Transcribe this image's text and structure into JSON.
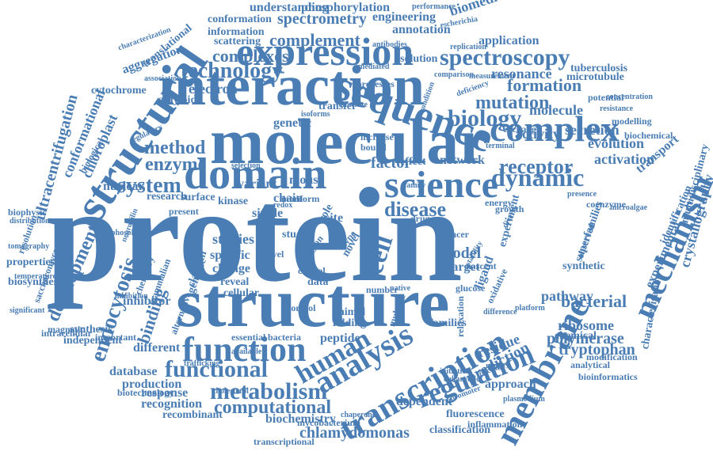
{
  "cloud": {
    "color": "#4a7db4",
    "words": [
      "protein",
      "structure",
      "molecular",
      "interaction",
      "structural",
      "domain",
      "sequence",
      "expression",
      "science",
      "function",
      "membrane",
      "complex",
      "mechanism",
      "analysis",
      "transcription",
      "metabolism",
      "human",
      "functional",
      "spectroscopy",
      "regulation",
      "technology",
      "dynamic",
      "endocytosis",
      "biology",
      "cell",
      "receptor",
      "system",
      "method",
      "disease",
      "enzyme",
      "mutation",
      "computational",
      "binding",
      "complexes",
      "complement",
      "development",
      "spectrometry",
      "formation",
      "chlamydomonas",
      "ultracentrifugation",
      "crystallography",
      "conformational",
      "chloroplast",
      "electron",
      "pathway",
      "bacterial",
      "model",
      "factor",
      "biochemistry",
      "prediction",
      "polymerase",
      "tryptophan",
      "ribosome",
      "activity",
      "molecule",
      "secretion",
      "evolution",
      "activation",
      "resonance",
      "engineering",
      "phosphorylation",
      "annotation",
      "understanding",
      "conformation",
      "information",
      "scattering",
      "biomedicine",
      "application",
      "tuberculosis",
      "microtubule",
      "transport",
      "nuclear",
      "mouse",
      "variant",
      "network",
      "effect",
      "genetic",
      "clathrin",
      "different",
      "database",
      "production",
      "response",
      "recognition",
      "recombinant",
      "independent",
      "synthesis",
      "inhibitor",
      "studies",
      "specific",
      "change",
      "reveal",
      "cellular",
      "surface",
      "research",
      "kinase",
      "single",
      "chain",
      "site",
      "role",
      "study",
      "target",
      "experiment",
      "ligand",
      "residue",
      "chemical",
      "approach",
      "fluorescence",
      "dependent",
      "classification",
      "inflammation",
      "mycobacterium",
      "transcriptional",
      "bioinformatics",
      "analytical",
      "modification",
      "experimental",
      "identification",
      "characterisation",
      "multidisciplinary",
      "biochemical",
      "modelling",
      "resistance",
      "concentration",
      "cytochrome",
      "amyloid",
      "aggregation",
      "translational",
      "characterization",
      "biophysic",
      "properties",
      "biosynthesis",
      "tomography",
      "resolution",
      "magnetic",
      "intracellular",
      "essential",
      "bacteria",
      "animal",
      "folding",
      "peptide",
      "families",
      "cholesterol",
      "trafficking",
      "alternative",
      "genome",
      "important",
      "biotechnology",
      "solution",
      "escherichia",
      "measurement",
      "synthetic",
      "superfamilies",
      "observed",
      "potential",
      "data",
      "crystal",
      "microalgae",
      "coenzyme",
      "growth",
      "energy",
      "biological",
      "distribution",
      "significant",
      "temperature",
      "phosphate",
      "regulatory",
      "antibodies",
      "performance",
      "glucose",
      "nascent",
      "exchange",
      "plasmodium",
      "mammalian",
      "chemistry",
      "neuropilin",
      "increase",
      "bound",
      "control",
      "available",
      "inhibition",
      "processes",
      "mediated",
      "arsenite",
      "transfer",
      "replication",
      "isoforms",
      "level",
      "more",
      "form",
      "present",
      "multiple",
      "eukaryotic",
      "specificity",
      "oxidative",
      "diverse",
      "stability",
      "terminal",
      "association",
      "region",
      "cancer",
      "novel",
      "type",
      "saccharomyces",
      "presence",
      "comparison",
      "relaxation",
      "initiation",
      "difference",
      "platform",
      "deficiency",
      "condition",
      "selection",
      "family",
      "redox",
      "number",
      "native",
      "drug",
      "range",
      "promoter",
      "chaperone"
    ]
  }
}
